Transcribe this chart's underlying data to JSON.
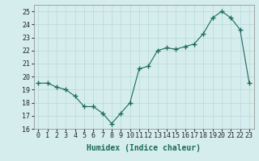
{
  "x": [
    0,
    1,
    2,
    3,
    4,
    5,
    6,
    7,
    8,
    9,
    10,
    11,
    12,
    13,
    14,
    15,
    16,
    17,
    18,
    19,
    20,
    21,
    22,
    23
  ],
  "y": [
    19.5,
    19.5,
    19.2,
    19.0,
    18.5,
    17.7,
    17.7,
    17.2,
    16.4,
    17.2,
    18.0,
    20.6,
    20.8,
    22.0,
    22.2,
    22.1,
    22.3,
    22.5,
    23.3,
    24.5,
    25.0,
    24.5,
    23.6,
    19.5
  ],
  "xlabel": "Humidex (Indice chaleur)",
  "xlim": [
    -0.5,
    23.5
  ],
  "ylim": [
    16,
    25.5
  ],
  "yticks": [
    16,
    17,
    18,
    19,
    20,
    21,
    22,
    23,
    24,
    25
  ],
  "xticks": [
    0,
    1,
    2,
    3,
    4,
    5,
    6,
    7,
    8,
    9,
    10,
    11,
    12,
    13,
    14,
    15,
    16,
    17,
    18,
    19,
    20,
    21,
    22,
    23
  ],
  "xtick_labels": [
    "0",
    "1",
    "2",
    "3",
    "4",
    "5",
    "6",
    "7",
    "8",
    "9",
    "10",
    "11",
    "12",
    "13",
    "14",
    "15",
    "16",
    "17",
    "18",
    "19",
    "20",
    "21",
    "22",
    "23"
  ],
  "line_color": "#1a6b5a",
  "marker": "+",
  "marker_size": 4.0,
  "bg_color": "#d6eded",
  "grid_color": "#b8d8d8",
  "xlabel_fontsize": 7,
  "tick_fontsize": 6
}
